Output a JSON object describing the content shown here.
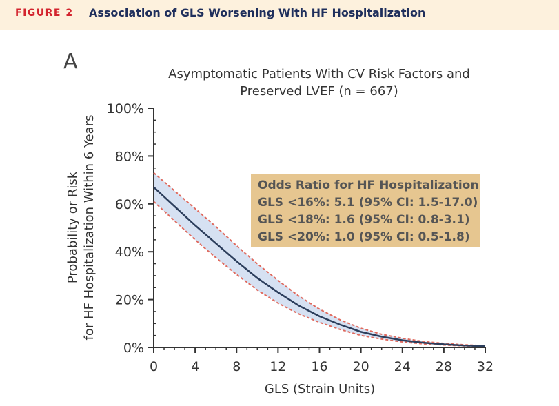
{
  "figure": {
    "label": "FIGURE 2",
    "title": "Association of GLS Worsening With HF Hospitalization",
    "panel": "A"
  },
  "chart_data": {
    "type": "line",
    "title_lines": [
      "Asymptomatic Patients With CV Risk Factors and",
      "Preserved LVEF (n = 667)"
    ],
    "xlabel": "GLS (Strain Units)",
    "ylabel_lines": [
      "Probability or Risk",
      "for HF Hospitalization Within 6 Years"
    ],
    "xlim": [
      0,
      32
    ],
    "ylim": [
      0,
      100
    ],
    "xticks": [
      0,
      4,
      8,
      12,
      16,
      20,
      24,
      28,
      32
    ],
    "yticks": [
      0,
      20,
      40,
      60,
      80,
      100
    ],
    "ytick_labels": [
      "0%",
      "20%",
      "40%",
      "60%",
      "80%",
      "100%"
    ],
    "grid": false,
    "x": [
      0,
      2,
      4,
      6,
      8,
      10,
      12,
      14,
      16,
      18,
      20,
      22,
      24,
      26,
      28,
      30,
      32
    ],
    "series": [
      {
        "role": "estimate",
        "color": "#2c3e5c",
        "values": [
          67,
          59,
          51,
          43.5,
          36,
          29,
          23,
          17.5,
          13,
          9.5,
          6.5,
          4.5,
          3,
          2,
          1.3,
          0.8,
          0.5
        ]
      },
      {
        "role": "upper-ci",
        "color": "#e06a5e",
        "values": [
          73,
          65.5,
          58,
          50.5,
          42.5,
          35,
          28,
          21.5,
          16,
          11.5,
          8,
          5.5,
          3.8,
          2.5,
          1.7,
          1.1,
          0.7
        ]
      },
      {
        "role": "lower-ci",
        "color": "#e06a5e",
        "values": [
          61,
          53,
          45,
          37.5,
          30.5,
          24,
          18.5,
          14,
          10.5,
          7.5,
          5,
          3.5,
          2.3,
          1.5,
          1,
          0.6,
          0.4
        ]
      }
    ],
    "band_color": "#d6e1f2",
    "annotation": {
      "title": "Odds Ratio for HF Hospitalization",
      "lines": [
        "GLS <16%: 5.1 (95% CI: 1.5-17.0)",
        "GLS <18%: 1.6 (95% CI: 0.8-3.1)",
        "GLS <20%: 1.0 (95% CI: 0.5-1.8)"
      ],
      "background": "#e6c690"
    }
  }
}
